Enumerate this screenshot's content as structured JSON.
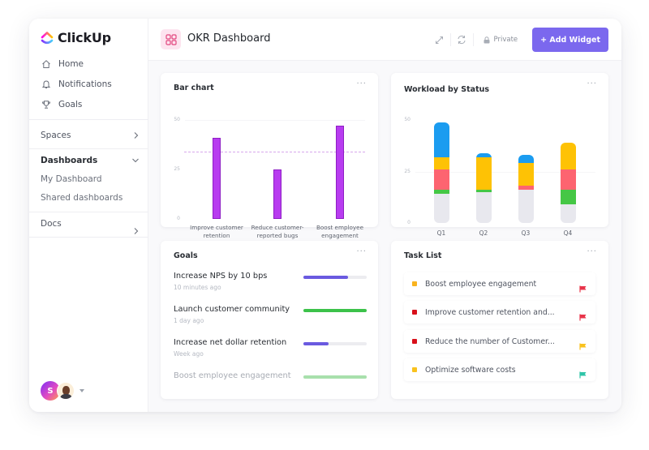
{
  "app": {
    "name": "ClickUp"
  },
  "sidebar": {
    "nav": [
      {
        "label": "Home",
        "icon": "home-icon"
      },
      {
        "label": "Notifications",
        "icon": "bell-icon"
      },
      {
        "label": "Goals",
        "icon": "trophy-icon"
      }
    ],
    "spaces_label": "Spaces",
    "dashboards_label": "Dashboards",
    "dashboards_items": [
      "My Dashboard",
      "Shared dashboards"
    ],
    "docs_label": "Docs",
    "user_initial": "S"
  },
  "header": {
    "title": "OKR Dashboard",
    "privacy_label": "Private",
    "add_widget_label": "+ Add Widget",
    "accent": "#7b68ee"
  },
  "widgets": {
    "bar_chart": {
      "title": "Bar chart",
      "more": "···"
    },
    "workload": {
      "title": "Workload by Status",
      "more": "···"
    },
    "goals": {
      "title": "Goals",
      "more": "···",
      "items": [
        {
          "name": "Increase NPS by 10 bps",
          "time": "10 minutes ago",
          "progress": 70,
          "color": "#6a5ae0"
        },
        {
          "name": "Launch customer community",
          "time": "1 day ago",
          "progress": 100,
          "color": "#3cc24a"
        },
        {
          "name": "Increase net dollar retention",
          "time": "Week ago",
          "progress": 40,
          "color": "#6a5ae0"
        },
        {
          "name": "Boost employee engagement",
          "time": "",
          "progress": 100,
          "color": "#a8e0ac"
        }
      ]
    },
    "tasks": {
      "title": "Task List",
      "more": "···",
      "items": [
        {
          "name": "Boost employee engagement",
          "status_color": "#f9b31e",
          "flag_color": "#e8344a"
        },
        {
          "name": "Improve customer retention and...",
          "status_color": "#d8101a",
          "flag_color": "#e8344a"
        },
        {
          "name": "Reduce the number of Customer...",
          "status_color": "#d8101a",
          "flag_color": "#f9c21e"
        },
        {
          "name": "Optimize software costs",
          "status_color": "#f9c21e",
          "flag_color": "#2fc4a8"
        }
      ]
    }
  },
  "chart_data": [
    {
      "type": "bar",
      "title": "Bar chart",
      "categories": [
        "Improve customer retention",
        "Reduce customer-reported bugs",
        "Boost employee engagement"
      ],
      "values": [
        41,
        25,
        47
      ],
      "yticks": [
        0,
        25,
        50
      ],
      "ylim": [
        0,
        50
      ],
      "reference_line": 34,
      "color": "#b83cf0"
    },
    {
      "type": "bar",
      "stacked": true,
      "title": "Workload by Status",
      "categories": [
        "Q1",
        "Q2",
        "Q3",
        "Q4"
      ],
      "yticks": [
        0,
        25,
        50
      ],
      "ylim": [
        0,
        50
      ],
      "series": [
        {
          "name": "gray",
          "color": "#e8e8ee",
          "values": [
            14,
            15,
            16,
            9
          ]
        },
        {
          "name": "green",
          "color": "#45c745",
          "values": [
            2,
            1,
            0,
            7
          ]
        },
        {
          "name": "red",
          "color": "#fd6470",
          "values": [
            10,
            0,
            2,
            10
          ]
        },
        {
          "name": "yellow",
          "color": "#fec205",
          "values": [
            6,
            16,
            11,
            13
          ]
        },
        {
          "name": "blue",
          "color": "#1b9cf0",
          "values": [
            17,
            2,
            4,
            0
          ]
        }
      ]
    }
  ]
}
